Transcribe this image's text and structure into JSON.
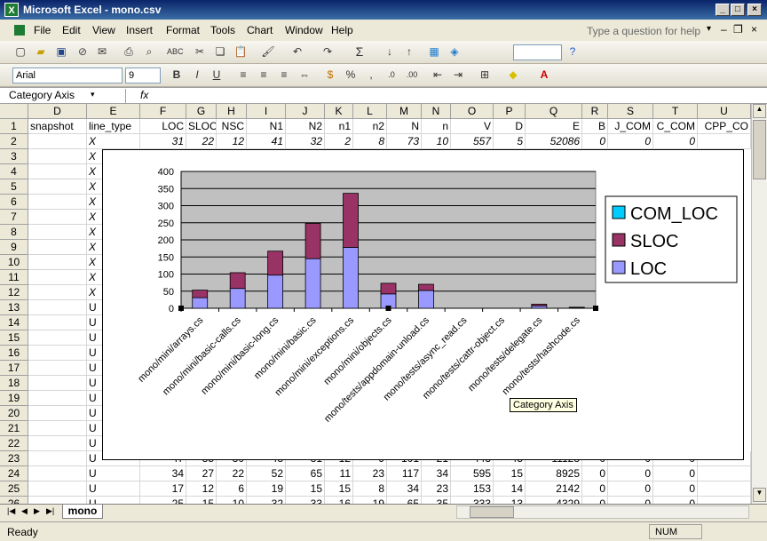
{
  "window": {
    "title": "Microsoft Excel - mono.csv"
  },
  "menus": [
    "File",
    "Edit",
    "View",
    "Insert",
    "Format",
    "Tools",
    "Chart",
    "Window",
    "Help"
  ],
  "question_placeholder": "Type a question for help",
  "font_name": "Arial",
  "font_size": "9",
  "name_box": "Category Axis",
  "fx_label": "fx",
  "columns": [
    "D",
    "E",
    "F",
    "G",
    "H",
    "I",
    "J",
    "K",
    "L",
    "M",
    "N",
    "O",
    "P",
    "Q",
    "R",
    "S",
    "T",
    "U"
  ],
  "row_numbers": [
    "1",
    "2",
    "3",
    "4",
    "5",
    "6",
    "7",
    "8",
    "9",
    "10",
    "11",
    "12",
    "13",
    "14",
    "15",
    "16",
    "17",
    "18",
    "19",
    "20",
    "21",
    "22",
    "23",
    "24",
    "25"
  ],
  "header_row": [
    "snapshot",
    "line_type",
    "LOC",
    "SLOC",
    "NSC",
    "N1",
    "N2",
    "n1",
    "n2",
    "N",
    "n",
    "V",
    "D",
    "E",
    "B",
    "J_COM",
    "C_COM",
    "CPP_CO"
  ],
  "row2": [
    "",
    "X",
    "31",
    "22",
    "12",
    "41",
    "32",
    "2",
    "8",
    "73",
    "10",
    "557",
    "5",
    "52086",
    "0",
    "0",
    "0",
    ""
  ],
  "row23_partial": [
    "",
    "U",
    "47",
    "35",
    "30",
    "48",
    "81",
    "12",
    "9",
    "101",
    "21",
    "443",
    "45",
    "11128",
    "0",
    "0",
    "0",
    ""
  ],
  "row24": [
    "",
    "U",
    "34",
    "27",
    "22",
    "52",
    "65",
    "11",
    "23",
    "117",
    "34",
    "595",
    "15",
    "8925",
    "0",
    "0",
    "0",
    ""
  ],
  "row25": [
    "",
    "U",
    "17",
    "12",
    "6",
    "19",
    "15",
    "15",
    "8",
    "34",
    "23",
    "153",
    "14",
    "2142",
    "0",
    "0",
    "0",
    ""
  ],
  "row26_partial": [
    "",
    "U",
    "25",
    "15",
    "10",
    "32",
    "33",
    "16",
    "19",
    "65",
    "35",
    "333",
    "13",
    "4329",
    "0",
    "0",
    "0",
    ""
  ],
  "line_type_col": [
    "X",
    "X",
    "X",
    "X",
    "X",
    "X",
    "X",
    "X",
    "X",
    "X",
    "U",
    "U",
    "U",
    "U",
    "U",
    "U",
    "U",
    "U",
    "U",
    "U"
  ],
  "sheet_tab": "mono",
  "status": {
    "left": "Ready",
    "num": "NUM"
  },
  "tooltip": "Category Axis",
  "chart_data": {
    "type": "bar",
    "stacked": true,
    "categories": [
      "mono/mini/arrays.cs",
      "mono/mini/basic-calls.cs",
      "mono/mini/basic-long.cs",
      "mono/mini/basic.cs",
      "mono/mini/exceptions.cs",
      "mono/mini/objects.cs",
      "mono/tests/appdomain-unload.cs",
      "mono/tests/async_read.cs",
      "mono/tests/cattr-object.cs",
      "mono/tests/delegate.cs",
      "mono/tests/hashcode.cs"
    ],
    "series": [
      {
        "name": "LOC",
        "values": [
          31,
          58,
          97,
          145,
          178,
          42,
          52,
          0,
          0,
          7,
          2
        ],
        "color": "#9999ff"
      },
      {
        "name": "SLOC",
        "values": [
          22,
          46,
          70,
          103,
          158,
          31,
          18,
          0,
          0,
          5,
          1
        ],
        "color": "#993366"
      },
      {
        "name": "COM_LOC",
        "values": [
          0,
          0,
          0,
          0,
          0,
          0,
          0,
          0,
          0,
          0,
          0
        ],
        "color": "#00ccff"
      }
    ],
    "ylim": [
      0,
      400
    ],
    "yticks": [
      "0",
      "50",
      "100",
      "150",
      "200",
      "250",
      "300",
      "350",
      "400"
    ],
    "legend": "right",
    "plot_bg": "#c0c0c0"
  }
}
